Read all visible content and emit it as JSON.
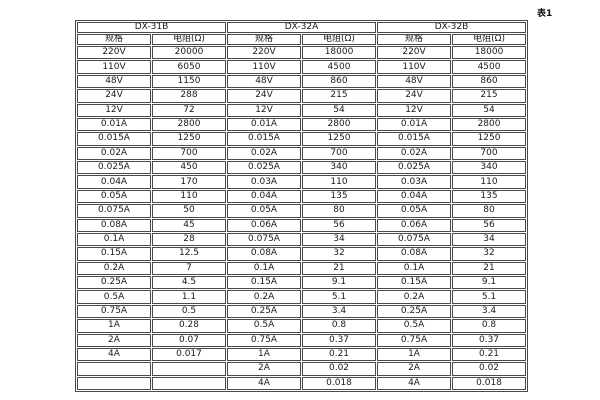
{
  "caption": "表1",
  "table": {
    "column_headers": {
      "spec": "规格",
      "resistance": "电阻(Ω)"
    },
    "groups": [
      {
        "name": "DX-31B",
        "rows": [
          [
            "220V",
            "20000"
          ],
          [
            "110V",
            "6050"
          ],
          [
            "48V",
            "1150"
          ],
          [
            "24V",
            "288"
          ],
          [
            "12V",
            "72"
          ],
          [
            "0.01A",
            "2800"
          ],
          [
            "0.015A",
            "1250"
          ],
          [
            "0.02A",
            "700"
          ],
          [
            "0.025A",
            "450"
          ],
          [
            "0.04A",
            "170"
          ],
          [
            "0.05A",
            "110"
          ],
          [
            "0.075A",
            "50"
          ],
          [
            "0.08A",
            "45"
          ],
          [
            "0.1A",
            "28"
          ],
          [
            "0.15A",
            "12.5"
          ],
          [
            "0.2A",
            "7"
          ],
          [
            "0.25A",
            "4.5"
          ],
          [
            "0.5A",
            "1.1"
          ],
          [
            "0.75A",
            "0.5"
          ],
          [
            "1A",
            "0.28"
          ],
          [
            "2A",
            "0.07"
          ],
          [
            "4A",
            "0.017"
          ],
          [
            "",
            ""
          ],
          [
            "",
            ""
          ]
        ]
      },
      {
        "name": "DX-32A",
        "rows": [
          [
            "220V",
            "18000"
          ],
          [
            "110V",
            "4500"
          ],
          [
            "48V",
            "860"
          ],
          [
            "24V",
            "215"
          ],
          [
            "12V",
            "54"
          ],
          [
            "0.01A",
            "2800"
          ],
          [
            "0.015A",
            "1250"
          ],
          [
            "0.02A",
            "700"
          ],
          [
            "0.025A",
            "340"
          ],
          [
            "0.03A",
            "110"
          ],
          [
            "0.04A",
            "135"
          ],
          [
            "0.05A",
            "80"
          ],
          [
            "0.06A",
            "56"
          ],
          [
            "0.075A",
            "34"
          ],
          [
            "0.08A",
            "32"
          ],
          [
            "0.1A",
            "21"
          ],
          [
            "0.15A",
            "9.1"
          ],
          [
            "0.2A",
            "5.1"
          ],
          [
            "0.25A",
            "3.4"
          ],
          [
            "0.5A",
            "0.8"
          ],
          [
            "0.75A",
            "0.37"
          ],
          [
            "1A",
            "0.21"
          ],
          [
            "2A",
            "0.02"
          ],
          [
            "4A",
            "0.018"
          ]
        ]
      },
      {
        "name": "DX-32B",
        "rows": [
          [
            "220V",
            "18000"
          ],
          [
            "110V",
            "4500"
          ],
          [
            "48V",
            "860"
          ],
          [
            "24V",
            "215"
          ],
          [
            "12V",
            "54"
          ],
          [
            "0.01A",
            "2800"
          ],
          [
            "0.015A",
            "1250"
          ],
          [
            "0.02A",
            "700"
          ],
          [
            "0.025A",
            "340"
          ],
          [
            "0.03A",
            "110"
          ],
          [
            "0.04A",
            "135"
          ],
          [
            "0.05A",
            "80"
          ],
          [
            "0.06A",
            "56"
          ],
          [
            "0.075A",
            "34"
          ],
          [
            "0.08A",
            "32"
          ],
          [
            "0.1A",
            "21"
          ],
          [
            "0.15A",
            "9.1"
          ],
          [
            "0.2A",
            "5.1"
          ],
          [
            "0.25A",
            "3.4"
          ],
          [
            "0.5A",
            "0.8"
          ],
          [
            "0.75A",
            "0.37"
          ],
          [
            "1A",
            "0.21"
          ],
          [
            "2A",
            "0.02"
          ],
          [
            "4A",
            "0.018"
          ]
        ]
      }
    ]
  },
  "colors": {
    "border": "#4a4a4a",
    "text": "#1a1a1a",
    "background": "#ffffff"
  }
}
